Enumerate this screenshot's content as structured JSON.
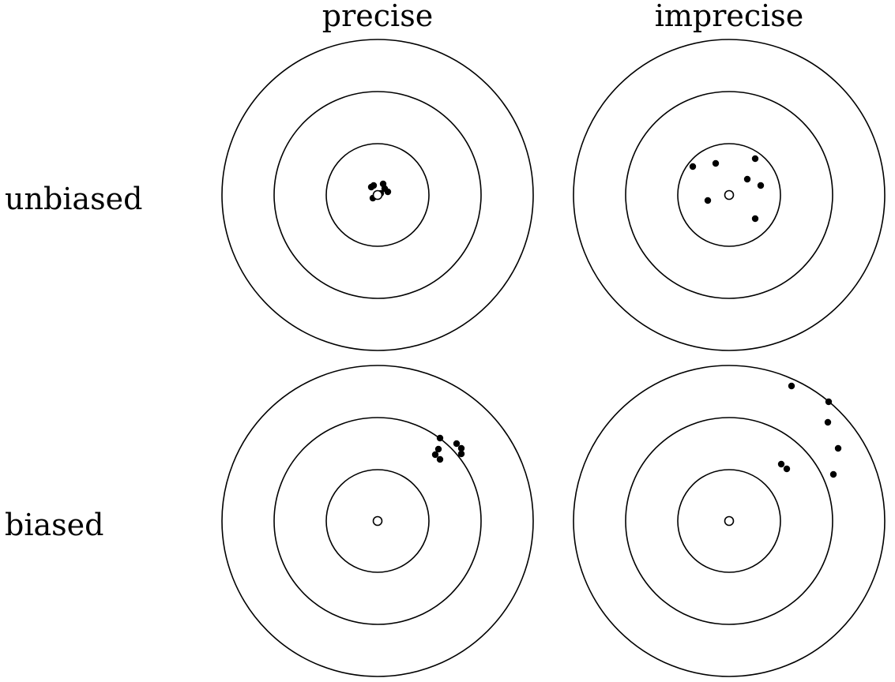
{
  "labels": {
    "columns": [
      "precise",
      "imprecise"
    ],
    "rows": [
      "unbiased",
      "biased"
    ]
  },
  "colors": {
    "ink": "#000000",
    "background": "#ffffff"
  },
  "targets": [
    {
      "id": "unbiased-precise",
      "row": "unbiased",
      "column": "precise",
      "hits": [
        [
          -8,
          -10
        ],
        [
          -5,
          -12
        ],
        [
          7,
          -14
        ],
        [
          9,
          -8
        ],
        [
          13,
          -4
        ],
        [
          -6,
          4
        ],
        [
          4,
          -2
        ]
      ]
    },
    {
      "id": "unbiased-imprecise",
      "row": "unbiased",
      "column": "imprecise",
      "hits": [
        [
          -46,
          -36
        ],
        [
          -17,
          -40
        ],
        [
          33,
          -46
        ],
        [
          23,
          -20
        ],
        [
          40,
          -12
        ],
        [
          -27,
          7
        ],
        [
          33,
          30
        ]
      ]
    },
    {
      "id": "biased-precise",
      "row": "biased",
      "column": "precise",
      "hits": [
        [
          79,
          -105
        ],
        [
          77,
          -91
        ],
        [
          73,
          -84
        ],
        [
          79,
          -78
        ],
        [
          100,
          -98
        ],
        [
          106,
          -92
        ],
        [
          106,
          -85
        ]
      ]
    },
    {
      "id": "biased-imprecise",
      "row": "biased",
      "column": "imprecise",
      "hits": [
        [
          79,
          -171
        ],
        [
          126,
          -151
        ],
        [
          125,
          -125
        ],
        [
          138,
          -92
        ],
        [
          66,
          -72
        ],
        [
          73,
          -66
        ],
        [
          132,
          -59
        ]
      ]
    }
  ]
}
